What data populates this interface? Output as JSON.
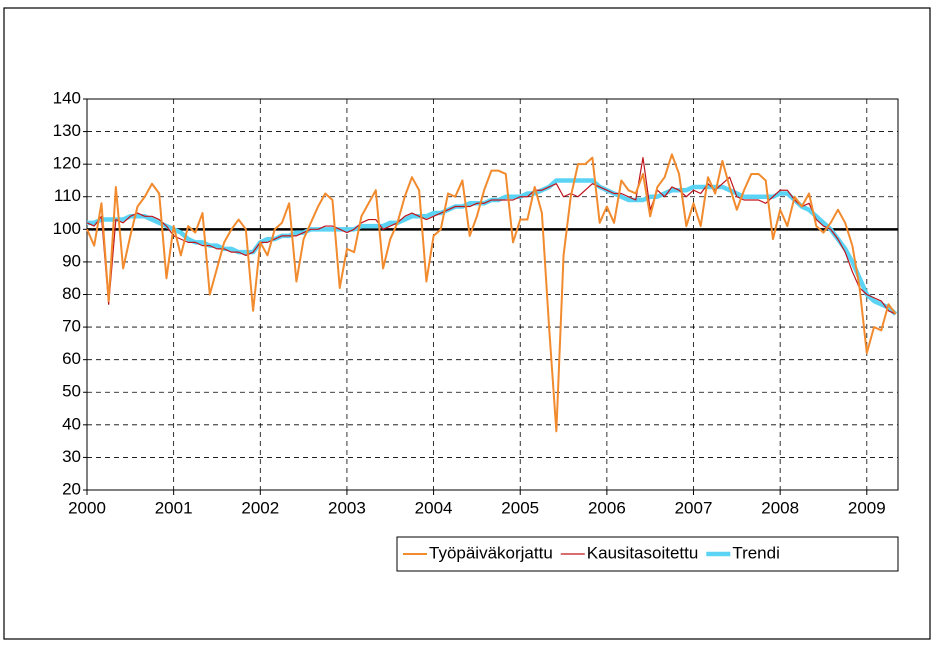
{
  "chart_data": {
    "type": "line",
    "x": [
      2000,
      2000.083,
      2000.167,
      2000.25,
      2000.333,
      2000.417,
      2000.5,
      2000.583,
      2000.667,
      2000.75,
      2000.833,
      2000.917,
      2001,
      2001.083,
      2001.167,
      2001.25,
      2001.333,
      2001.417,
      2001.5,
      2001.583,
      2001.667,
      2001.75,
      2001.833,
      2001.917,
      2002,
      2002.083,
      2002.167,
      2002.25,
      2002.333,
      2002.417,
      2002.5,
      2002.583,
      2002.667,
      2002.75,
      2002.833,
      2002.917,
      2003,
      2003.083,
      2003.167,
      2003.25,
      2003.333,
      2003.417,
      2003.5,
      2003.583,
      2003.667,
      2003.75,
      2003.833,
      2003.917,
      2004,
      2004.083,
      2004.167,
      2004.25,
      2004.333,
      2004.417,
      2004.5,
      2004.583,
      2004.667,
      2004.75,
      2004.833,
      2004.917,
      2005,
      2005.083,
      2005.167,
      2005.25,
      2005.333,
      2005.417,
      2005.5,
      2005.583,
      2005.667,
      2005.75,
      2005.833,
      2005.917,
      2006,
      2006.083,
      2006.167,
      2006.25,
      2006.333,
      2006.417,
      2006.5,
      2006.583,
      2006.667,
      2006.75,
      2006.833,
      2006.917,
      2007,
      2007.083,
      2007.167,
      2007.25,
      2007.333,
      2007.417,
      2007.5,
      2007.583,
      2007.667,
      2007.75,
      2007.833,
      2007.917,
      2008,
      2008.083,
      2008.167,
      2008.25,
      2008.333,
      2008.417,
      2008.5,
      2008.583,
      2008.667,
      2008.75,
      2008.833,
      2008.917,
      2009,
      2009.083,
      2009.167,
      2009.25,
      2009.333
    ],
    "series": [
      {
        "name": "Trendi",
        "color": "#5bd3f5",
        "width": 4.5,
        "values": [
          102,
          102,
          103,
          103,
          103,
          103,
          104,
          104,
          104,
          103,
          102,
          101,
          100,
          99,
          97,
          96,
          96,
          95,
          95,
          94,
          94,
          93,
          93,
          93,
          96,
          97,
          97,
          98,
          98,
          99,
          99,
          100,
          100,
          100,
          100,
          100,
          100,
          100,
          101,
          101,
          101,
          101,
          102,
          102,
          103,
          104,
          104,
          104,
          105,
          105,
          106,
          107,
          107,
          108,
          108,
          108,
          109,
          109,
          110,
          110,
          110,
          111,
          111,
          112,
          113,
          115,
          115,
          115,
          115,
          115,
          115,
          113,
          112,
          111,
          110,
          109,
          109,
          109,
          110,
          110,
          111,
          112,
          112,
          112,
          113,
          113,
          113,
          113,
          113,
          112,
          111,
          110,
          110,
          110,
          110,
          110,
          111,
          111,
          109,
          107,
          106,
          104,
          102,
          100,
          97,
          94,
          90,
          85,
          80,
          78,
          77,
          76,
          74
        ]
      },
      {
        "name": "Kausitasoitettu",
        "color": "#c0141c",
        "width": 1.2,
        "values": [
          102,
          101,
          104,
          77,
          103,
          102,
          104,
          105,
          104,
          104,
          103,
          101,
          98,
          97,
          96,
          96,
          95,
          95,
          94,
          94,
          93,
          93,
          92,
          93,
          96,
          96,
          97,
          98,
          98,
          98,
          99,
          100,
          100,
          101,
          101,
          100,
          99,
          100,
          102,
          103,
          103,
          100,
          101,
          102,
          104,
          105,
          104,
          103,
          104,
          105,
          106,
          107,
          107,
          107,
          108,
          108,
          109,
          109,
          109,
          109,
          110,
          110,
          112,
          112,
          113,
          114,
          110,
          111,
          110,
          112,
          114,
          113,
          112,
          111,
          111,
          110,
          109,
          122,
          106,
          112,
          110,
          113,
          112,
          110,
          112,
          111,
          114,
          112,
          114,
          116,
          110,
          109,
          109,
          109,
          108,
          110,
          112,
          112,
          109,
          107,
          108,
          103,
          101,
          100,
          97,
          93,
          87,
          82,
          80,
          79,
          78,
          75,
          74
        ]
      },
      {
        "name": "Työpäiväkorjattu",
        "color": "#f28a2e",
        "width": 2,
        "values": [
          100,
          95,
          108,
          78,
          113,
          88,
          98,
          107,
          110,
          114,
          111,
          85,
          101,
          92,
          101,
          99,
          105,
          80,
          88,
          96,
          100,
          103,
          100,
          75,
          96,
          92,
          100,
          102,
          108,
          84,
          97,
          102,
          107,
          111,
          109,
          82,
          94,
          93,
          104,
          108,
          112,
          88,
          97,
          102,
          110,
          116,
          112,
          84,
          98,
          100,
          111,
          110,
          115,
          98,
          104,
          112,
          118,
          118,
          117,
          96,
          103,
          103,
          113,
          105,
          70,
          38,
          92,
          110,
          120,
          120,
          122,
          102,
          107,
          102,
          115,
          112,
          111,
          117,
          104,
          113,
          116,
          123,
          117,
          101,
          108,
          101,
          116,
          111,
          121,
          113,
          106,
          112,
          117,
          117,
          115,
          97,
          106,
          101,
          110,
          107,
          111,
          101,
          99,
          102,
          106,
          102,
          95,
          82,
          62,
          70,
          69,
          77,
          74
        ]
      }
    ],
    "legend_order": [
      "Työpäiväkorjattu",
      "Kausitasoitettu",
      "Trendi"
    ],
    "hline": 100,
    "xlim": [
      2000,
      2009.36
    ],
    "xticks": [
      2000,
      2001,
      2002,
      2003,
      2004,
      2005,
      2006,
      2007,
      2008,
      2009
    ],
    "ylim": [
      20,
      140
    ],
    "yticks": [
      20,
      30,
      40,
      50,
      60,
      70,
      80,
      90,
      100,
      110,
      120,
      130,
      140
    ],
    "grid": true,
    "legend": "bottom-right"
  }
}
